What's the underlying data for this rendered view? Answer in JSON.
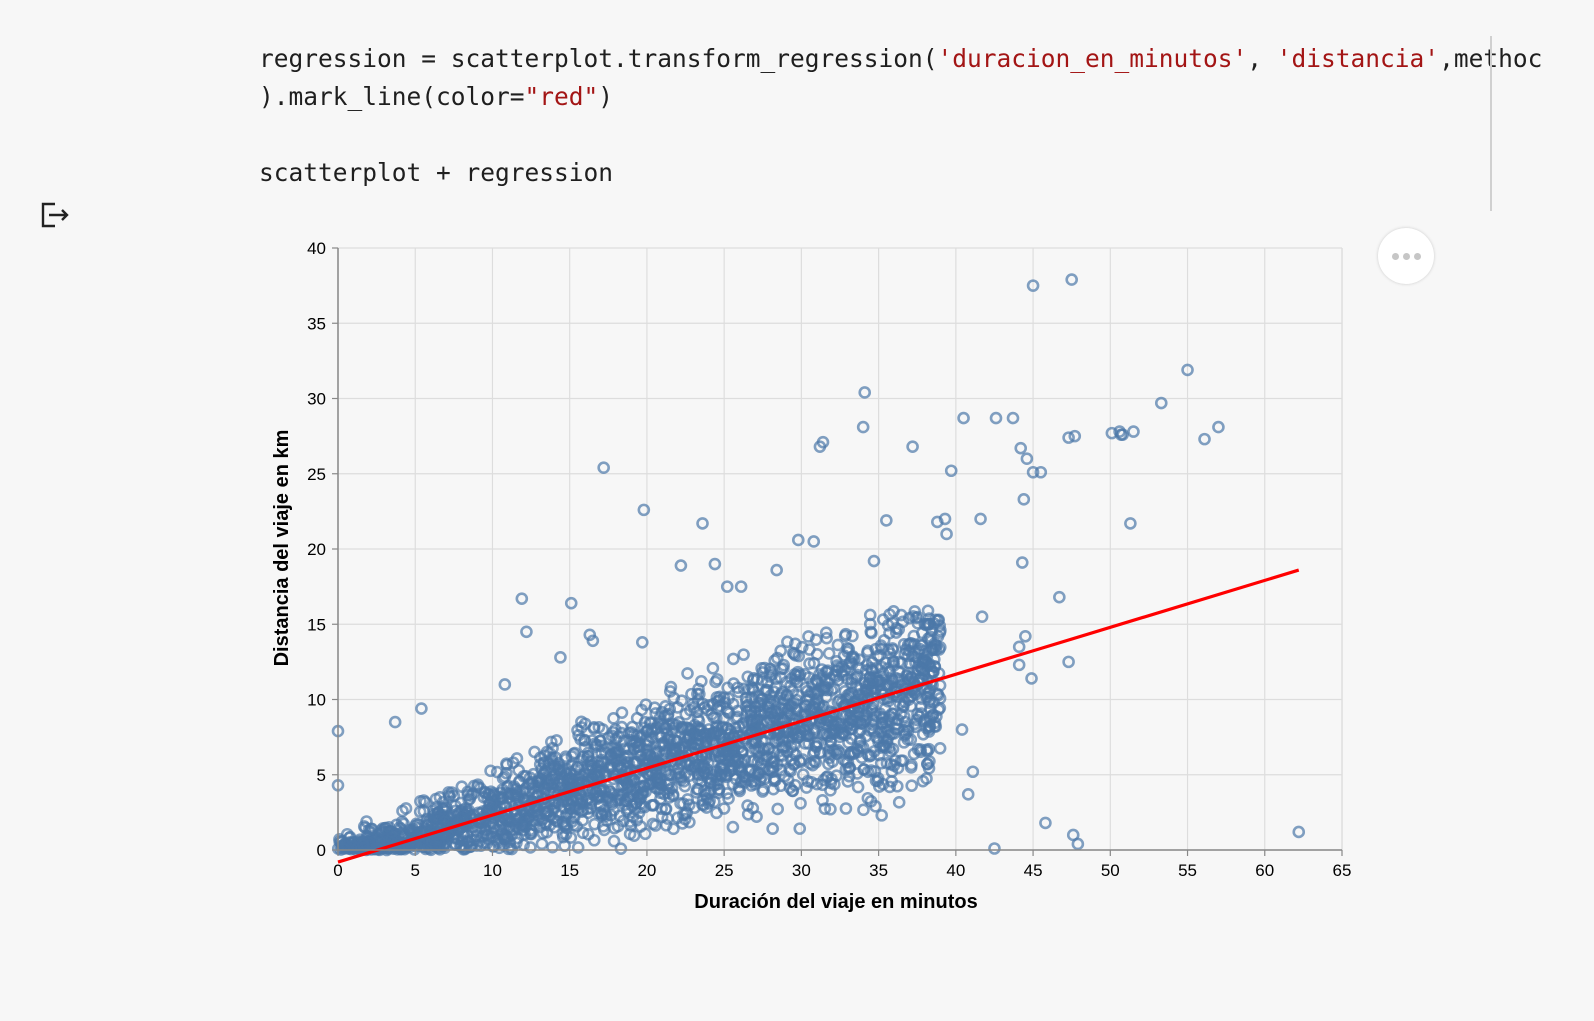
{
  "code_cell": {
    "lines": [
      [
        {
          "t": "regression = scatterplot.transform_regression(",
          "c": "plain"
        },
        {
          "t": "'duracion_en_minutos'",
          "c": "str"
        },
        {
          "t": ", ",
          "c": "plain"
        },
        {
          "t": "'distancia'",
          "c": "str"
        },
        {
          "t": ",methoc",
          "c": "plain"
        }
      ],
      [
        {
          "t": ").mark_line(color=",
          "c": "plain"
        },
        {
          "t": "\"red\"",
          "c": "str"
        },
        {
          "t": ")",
          "c": "plain"
        }
      ],
      [],
      [
        {
          "t": "scatterplot + regression",
          "c": "plain"
        }
      ]
    ]
  },
  "icons": {
    "output": "output-redirect-icon",
    "more": "more-actions-icon"
  },
  "chart_data": {
    "type": "scatter",
    "xlabel": "Duración del viaje en minutos",
    "ylabel": "Distancia del viaje en km",
    "xlim": [
      0,
      65
    ],
    "ylim": [
      0,
      40
    ],
    "xticks": [
      0,
      5,
      10,
      15,
      20,
      25,
      30,
      35,
      40,
      45,
      50,
      55,
      60,
      65
    ],
    "yticks": [
      0,
      5,
      10,
      15,
      20,
      25,
      30,
      35,
      40
    ],
    "grid": true,
    "point_color": "#4c78a8",
    "line_color": "#ff0000",
    "regression": {
      "x": [
        0,
        62.2
      ],
      "y": [
        -0.8,
        18.6
      ]
    },
    "dense_cloud": {
      "x_range": [
        0,
        39
      ],
      "slope": 0.31,
      "intercept": -0.7,
      "spread": 1.8
    },
    "outliers": {
      "x": [
        45,
        47.5,
        34.1,
        55,
        53.3,
        40.5,
        42.6,
        43.7,
        31.4,
        31.2,
        34,
        37.2,
        38.8,
        39.7,
        44.2,
        44.6,
        45,
        45.5,
        44.4,
        47.3,
        47.7,
        50.1,
        50.6,
        50.7,
        50.8,
        51.5,
        56.1,
        57,
        51.3,
        41.6,
        39.3,
        39.4,
        35.5,
        34.7,
        17.2,
        19.8,
        23.6,
        24.4,
        29.8,
        30.8,
        28.4,
        25.2,
        26.1,
        22.2,
        44.3,
        46.7,
        41.7,
        44.5,
        47.3,
        44.1,
        44.1,
        44.9,
        40.4,
        41.1,
        40.8,
        42.5,
        45.8,
        47.6,
        47.9,
        62.2,
        0,
        0,
        34.8,
        35.2,
        33.1,
        11.9,
        15.1,
        12.2,
        16.3,
        19.7,
        10.8,
        14.4,
        16.5,
        5.4,
        3.7
      ],
      "y": [
        37.5,
        37.9,
        30.4,
        31.9,
        29.7,
        28.7,
        28.7,
        28.7,
        27.1,
        26.8,
        28.1,
        26.8,
        21.8,
        25.2,
        26.7,
        26,
        25.1,
        25.1,
        23.3,
        27.4,
        27.5,
        27.7,
        27.8,
        27.6,
        27.6,
        27.8,
        27.3,
        28.1,
        21.7,
        22,
        22,
        21,
        21.9,
        19.2,
        25.4,
        22.6,
        21.7,
        19,
        20.6,
        20.5,
        18.6,
        17.5,
        17.5,
        18.9,
        19.1,
        16.8,
        15.5,
        14.2,
        12.5,
        13.5,
        12.3,
        11.4,
        8,
        5.2,
        3.7,
        0.1,
        1.8,
        1.0,
        0.4,
        1.2,
        7.9,
        4.3,
        2.9,
        2.3,
        4.9,
        16.7,
        16.4,
        14.5,
        14.3,
        13.8,
        11,
        12.8,
        13.9,
        9.4,
        8.5
      ]
    }
  }
}
